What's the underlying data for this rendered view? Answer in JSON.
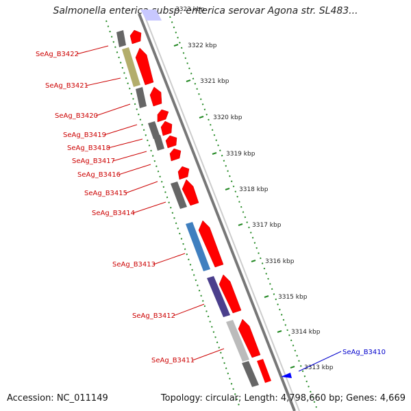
{
  "title": "Salmonella enterica subsp. enterica serovar Agona str. SL483...",
  "footer": {
    "accession": "Accession: NC_011149",
    "topology": "Topology: circular; Length: 4,798,660 bp; Genes: 4,669"
  },
  "scale": {
    "partial_top_label": "3323 kbp",
    "ticks": [
      "3322 kbp",
      "3321 kbp",
      "3320 kbp",
      "3319 kbp",
      "3318 kbp",
      "3317 kbp",
      "3316 kbp",
      "3315 kbp",
      "3314 kbp",
      "3313 kbp"
    ]
  },
  "colors": {
    "reverse_label": "#cc0000",
    "forward_label": "#0000cc",
    "backbone": "#888888",
    "dotted_track": "#228822",
    "arrow": "#ff0000",
    "arrow_forward": "#0000ff"
  },
  "genes": [
    {
      "label": "SeAg_B3422",
      "strand": "reverse",
      "cog_color": "#666666"
    },
    {
      "label": "SeAg_B3421",
      "strand": "reverse",
      "cog_color": "#b3ad6b"
    },
    {
      "label": "SeAg_B3420",
      "strand": "reverse",
      "cog_color": "#666666"
    },
    {
      "label": "SeAg_B3419",
      "strand": "reverse",
      "cog_color": null
    },
    {
      "label": "SeAg_B3418",
      "strand": "reverse",
      "cog_color": "#666666"
    },
    {
      "label": "SeAg_B3417",
      "strand": "reverse",
      "cog_color": "#666666"
    },
    {
      "label": "SeAg_B3416",
      "strand": "reverse",
      "cog_color": null
    },
    {
      "label": "SeAg_B3415",
      "strand": "reverse",
      "cog_color": null
    },
    {
      "label": "SeAg_B3414",
      "strand": "reverse",
      "cog_color": "#666666"
    },
    {
      "label": "SeAg_B3413",
      "strand": "reverse",
      "cog_color": "#3f7fbf"
    },
    {
      "label": "SeAg_B3412",
      "strand": "reverse",
      "cog_color": "#4b3f8c"
    },
    {
      "label": "SeAg_B3411",
      "strand": "reverse",
      "cog_color": "#bbbbbb"
    },
    {
      "label": "SeAg_B3410",
      "strand": "forward",
      "cog_color": null
    }
  ]
}
